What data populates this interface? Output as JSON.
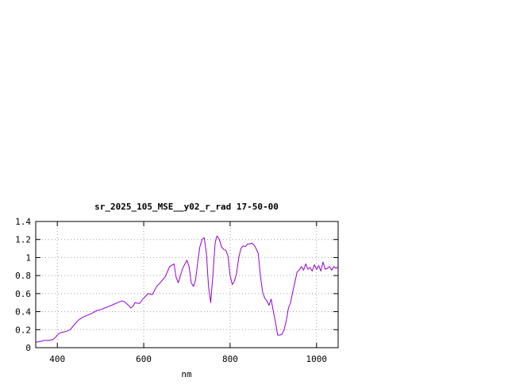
{
  "chart_data": {
    "type": "line",
    "title": "sr_2025_105_MSE__y02_r_rad 17-50-00",
    "xlabel": "nm",
    "ylabel": "",
    "xlim": [
      350,
      1050
    ],
    "ylim": [
      0,
      1.4
    ],
    "xticks": [
      400,
      600,
      800,
      1000
    ],
    "yticks": [
      0,
      0.2,
      0.4,
      0.6,
      0.8,
      1,
      1.2,
      1.4
    ],
    "grid": true,
    "series_color": "#9400d3",
    "series": [
      {
        "x": [
          350,
          360,
          370,
          380,
          390,
          395,
          400,
          405,
          410,
          420,
          430,
          440,
          450,
          460,
          470,
          480,
          490,
          500,
          510,
          520,
          530,
          540,
          550,
          555,
          560,
          565,
          570,
          575,
          580,
          590,
          600,
          610,
          620,
          630,
          640,
          650,
          660,
          670,
          675,
          680,
          685,
          690,
          700,
          705,
          710,
          715,
          720,
          725,
          730,
          735,
          740,
          745,
          750,
          755,
          760,
          765,
          768,
          770,
          775,
          780,
          785,
          790,
          795,
          800,
          805,
          810,
          815,
          820,
          825,
          830,
          835,
          840,
          845,
          850,
          855,
          860,
          865,
          870,
          875,
          880,
          885,
          890,
          895,
          900,
          905,
          910,
          915,
          920,
          925,
          930,
          935,
          940,
          945,
          950,
          955,
          960,
          965,
          970,
          975,
          980,
          985,
          990,
          995,
          1000,
          1005,
          1010,
          1015,
          1020,
          1025,
          1030,
          1035,
          1040,
          1045,
          1050
        ],
        "values": [
          0.06,
          0.07,
          0.08,
          0.08,
          0.09,
          0.11,
          0.14,
          0.16,
          0.17,
          0.18,
          0.2,
          0.26,
          0.31,
          0.34,
          0.36,
          0.38,
          0.41,
          0.42,
          0.44,
          0.46,
          0.48,
          0.5,
          0.52,
          0.51,
          0.49,
          0.47,
          0.44,
          0.46,
          0.5,
          0.49,
          0.55,
          0.6,
          0.59,
          0.68,
          0.73,
          0.79,
          0.9,
          0.93,
          0.78,
          0.72,
          0.8,
          0.88,
          0.97,
          0.9,
          0.72,
          0.68,
          0.75,
          0.95,
          1.12,
          1.2,
          1.22,
          1.05,
          0.68,
          0.5,
          0.8,
          1.15,
          1.22,
          1.24,
          1.2,
          1.12,
          1.09,
          1.08,
          1.02,
          0.8,
          0.7,
          0.74,
          0.83,
          1.0,
          1.1,
          1.13,
          1.12,
          1.15,
          1.15,
          1.16,
          1.14,
          1.1,
          1.05,
          0.8,
          0.62,
          0.55,
          0.52,
          0.47,
          0.54,
          0.4,
          0.28,
          0.14,
          0.14,
          0.15,
          0.2,
          0.3,
          0.44,
          0.5,
          0.62,
          0.73,
          0.84,
          0.86,
          0.9,
          0.86,
          0.93,
          0.87,
          0.89,
          0.85,
          0.92,
          0.87,
          0.91,
          0.85,
          0.95,
          0.87,
          0.88,
          0.9,
          0.86,
          0.9,
          0.88,
          0.9
        ]
      }
    ]
  }
}
